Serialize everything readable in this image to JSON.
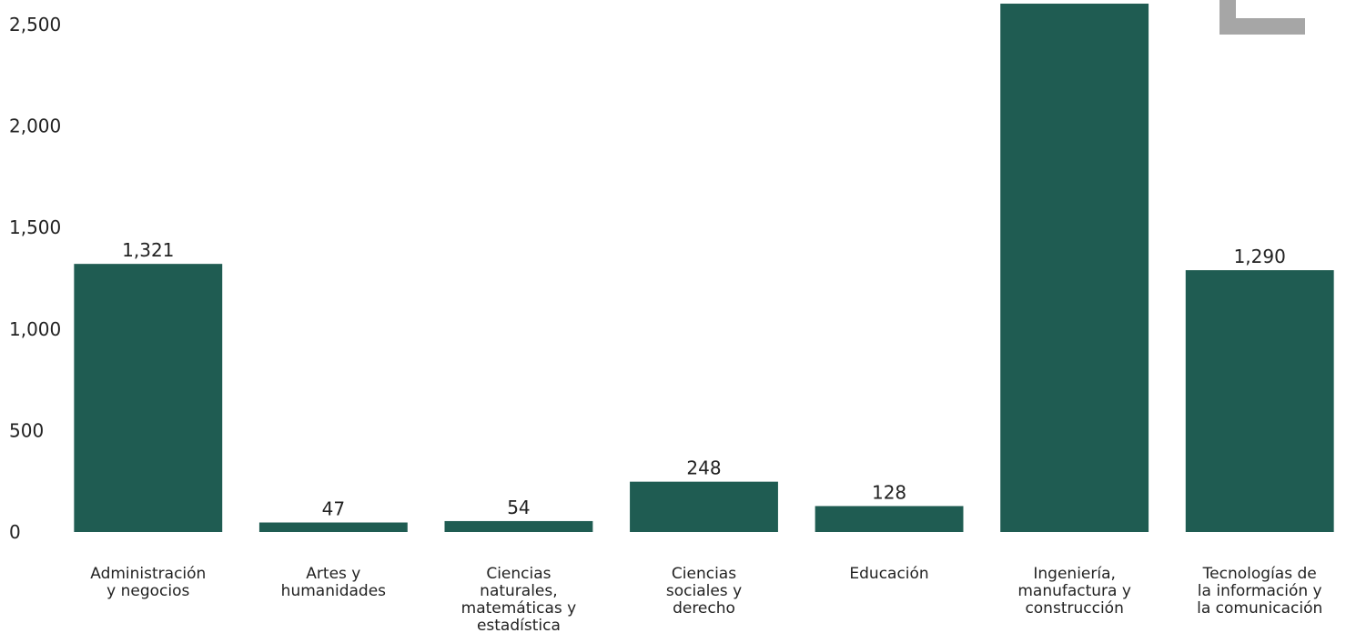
{
  "chart_data": {
    "type": "bar",
    "categories": [
      "Administración\ny negocios",
      "Artes y\nhumanidades",
      "Ciencias\nnaturales,\nmatemáticas y\nestadística",
      "Ciencias\nsociales y\nderecho",
      "Educación",
      "Ingeniería,\nmanufactura y\nconstrucción",
      "Tecnologías de\nla información y\nla comunicación"
    ],
    "values": [
      1321,
      47,
      54,
      248,
      128,
      2603,
      1290
    ],
    "value_labels": [
      "1,321",
      "47",
      "54",
      "248",
      "128",
      null,
      "1,290"
    ],
    "color": "#1f5c52",
    "ylim": [
      0,
      2621
    ],
    "yticks": [
      0,
      500,
      {
        "value": 1000,
        "label": "1,000"
      },
      {
        "value": 1500,
        "label": "1,500"
      },
      {
        "value": 2000,
        "label": "2,000"
      },
      {
        "value": 2500,
        "label": "2,500"
      }
    ],
    "grid": false
  }
}
